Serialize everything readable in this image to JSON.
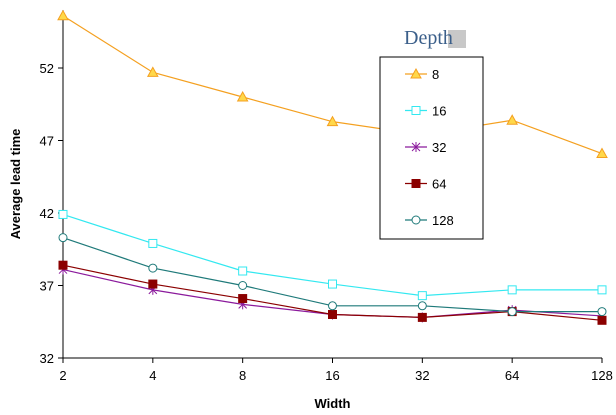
{
  "chart_data": {
    "type": "line",
    "title": "",
    "xlabel": "Width",
    "ylabel": "Average lead time",
    "categories": [
      "2",
      "4",
      "8",
      "16",
      "32",
      "64",
      "128"
    ],
    "ylim": [
      32,
      56
    ],
    "yticks": [
      32,
      37,
      42,
      47,
      52
    ],
    "grid": false,
    "legend": {
      "title": "Depth",
      "placement": "top-right",
      "title_color": "#3b5f8a"
    },
    "series": [
      {
        "name": "8",
        "color": "#f4a020",
        "marker": "triangle",
        "values": [
          55.6,
          51.7,
          50.0,
          48.3,
          47.4,
          48.4,
          46.1
        ]
      },
      {
        "name": "16",
        "color": "#33e8f0",
        "marker": "square-open",
        "values": [
          41.9,
          39.9,
          38.0,
          37.1,
          36.3,
          36.7,
          36.7
        ]
      },
      {
        "name": "32",
        "color": "#8b1a9c",
        "marker": "asterisk",
        "values": [
          38.1,
          36.7,
          35.7,
          35.0,
          34.8,
          35.3,
          34.9
        ]
      },
      {
        "name": "64",
        "color": "#8b0000",
        "marker": "square-filled",
        "values": [
          38.4,
          37.1,
          36.1,
          35.0,
          34.8,
          35.2,
          34.6
        ]
      },
      {
        "name": "128",
        "color": "#1f7a7a",
        "marker": "circle-open",
        "values": [
          40.3,
          38.2,
          37.0,
          35.6,
          35.6,
          35.2,
          35.2
        ]
      }
    ]
  }
}
